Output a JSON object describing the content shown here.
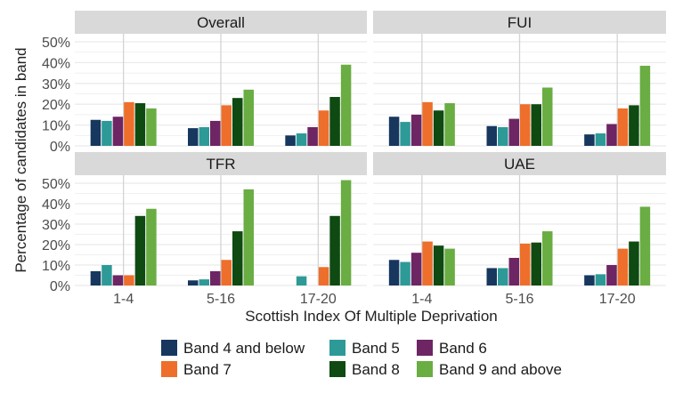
{
  "chart_data": {
    "type": "bar",
    "xlabel": "Scottish Index Of Multiple Deprivation",
    "ylabel": "Percentage of candidates in band",
    "ylim": [
      0,
      50
    ],
    "yticks": [
      "0%",
      "10%",
      "20%",
      "30%",
      "40%",
      "50%"
    ],
    "categories": [
      "1-4",
      "5-16",
      "17-20"
    ],
    "legend": [
      {
        "name": "Band 4 and below",
        "color": "#17375e"
      },
      {
        "name": "Band 5",
        "color": "#2e9a97"
      },
      {
        "name": "Band 6",
        "color": "#6e2563"
      },
      {
        "name": "Band 7",
        "color": "#ed6f2b"
      },
      {
        "name": "Band 8",
        "color": "#0e4a12"
      },
      {
        "name": "Band 9 and above",
        "color": "#6aad43"
      }
    ],
    "panels": [
      {
        "title": "Overall",
        "values": [
          [
            12.5,
            12,
            14,
            21,
            20.5,
            18
          ],
          [
            8.5,
            9,
            12,
            19.5,
            23,
            27
          ],
          [
            5,
            6,
            9,
            17,
            23.5,
            39
          ]
        ]
      },
      {
        "title": "FUI",
        "values": [
          [
            14,
            11.5,
            15,
            21,
            17,
            20.5
          ],
          [
            9.5,
            9,
            13,
            20,
            20,
            28
          ],
          [
            5.5,
            6,
            10.5,
            18,
            19.5,
            38.5
          ]
        ]
      },
      {
        "title": "TFR",
        "values": [
          [
            7,
            10,
            5,
            5,
            34,
            37.5
          ],
          [
            2.5,
            3,
            7,
            12.5,
            26.5,
            47
          ],
          [
            0,
            4.5,
            0,
            9,
            34,
            51.5
          ]
        ]
      },
      {
        "title": "UAE",
        "values": [
          [
            12.5,
            11.5,
            16,
            21.5,
            19.5,
            18
          ],
          [
            8.5,
            8.5,
            13.5,
            20.5,
            21,
            26.5
          ],
          [
            5,
            5.5,
            10,
            18,
            21.5,
            38.5
          ]
        ]
      }
    ]
  }
}
